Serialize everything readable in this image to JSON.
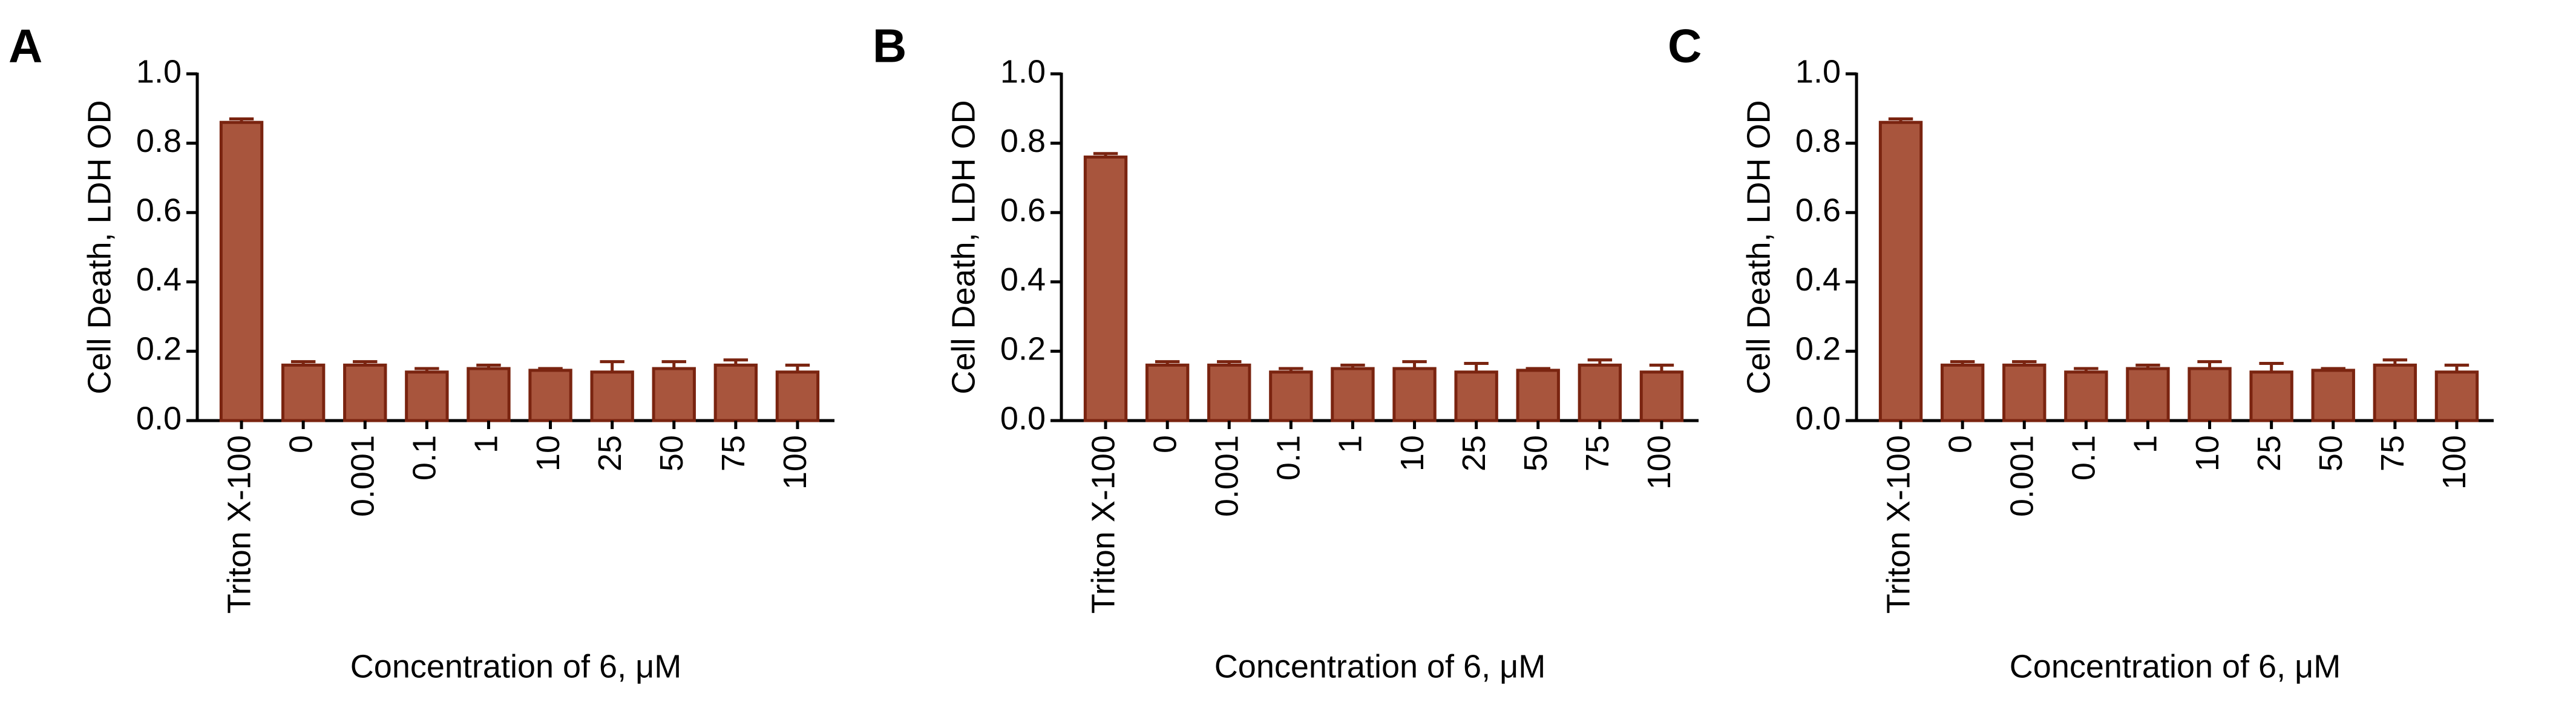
{
  "chart_data": [
    {
      "type": "bar",
      "label": "A",
      "ylabel": "Cell Death, LDH OD",
      "xlabel": "Concentration of 6, μM",
      "categories": [
        "Triton X-100",
        "0",
        "0.001",
        "0.1",
        "1",
        "10",
        "25",
        "50",
        "75",
        "100"
      ],
      "values": [
        0.86,
        0.16,
        0.16,
        0.14,
        0.15,
        0.145,
        0.14,
        0.15,
        0.16,
        0.14
      ],
      "errors": [
        0.01,
        0.01,
        0.01,
        0.01,
        0.01,
        0.005,
        0.03,
        0.02,
        0.015,
        0.02
      ],
      "color": "#a8553d",
      "edgecolor": "#7a2410",
      "ylim": [
        0,
        1
      ],
      "yticks": [
        {
          "value": 0,
          "label": "0.0"
        },
        0.2,
        0.4,
        0.6,
        0.8,
        {
          "value": 1,
          "label": "1.0"
        }
      ]
    },
    {
      "type": "bar",
      "label": "B",
      "ylabel": "Cell Death, LDH OD",
      "xlabel": "Concentration of 6, μM",
      "categories": [
        "Triton X-100",
        "0",
        "0.001",
        "0.1",
        "1",
        "10",
        "25",
        "50",
        "75",
        "100"
      ],
      "values": [
        0.76,
        0.16,
        0.16,
        0.14,
        0.15,
        0.15,
        0.14,
        0.145,
        0.16,
        0.14
      ],
      "errors": [
        0.01,
        0.01,
        0.01,
        0.01,
        0.01,
        0.02,
        0.025,
        0.005,
        0.015,
        0.02
      ],
      "color": "#a8553d",
      "edgecolor": "#7a2410",
      "ylim": [
        0,
        1
      ],
      "yticks": [
        {
          "value": 0,
          "label": "0.0"
        },
        0.2,
        0.4,
        0.6,
        0.8,
        {
          "value": 1,
          "label": "1.0"
        }
      ]
    },
    {
      "type": "bar",
      "label": "C",
      "ylabel": "Cell Death, LDH OD",
      "xlabel": "Concentration of 6, μM",
      "categories": [
        "Triton X-100",
        "0",
        "0.001",
        "0.1",
        "1",
        "10",
        "25",
        "50",
        "75",
        "100"
      ],
      "values": [
        0.86,
        0.16,
        0.16,
        0.14,
        0.15,
        0.15,
        0.14,
        0.145,
        0.16,
        0.14
      ],
      "errors": [
        0.01,
        0.01,
        0.01,
        0.01,
        0.01,
        0.02,
        0.025,
        0.005,
        0.015,
        0.02
      ],
      "color": "#a8553d",
      "edgecolor": "#7a2410",
      "ylim": [
        0,
        1
      ],
      "yticks": [
        {
          "value": 0,
          "label": "0.0"
        },
        0.2,
        0.4,
        0.6,
        0.8,
        {
          "value": 1,
          "label": "1.0"
        }
      ]
    }
  ]
}
